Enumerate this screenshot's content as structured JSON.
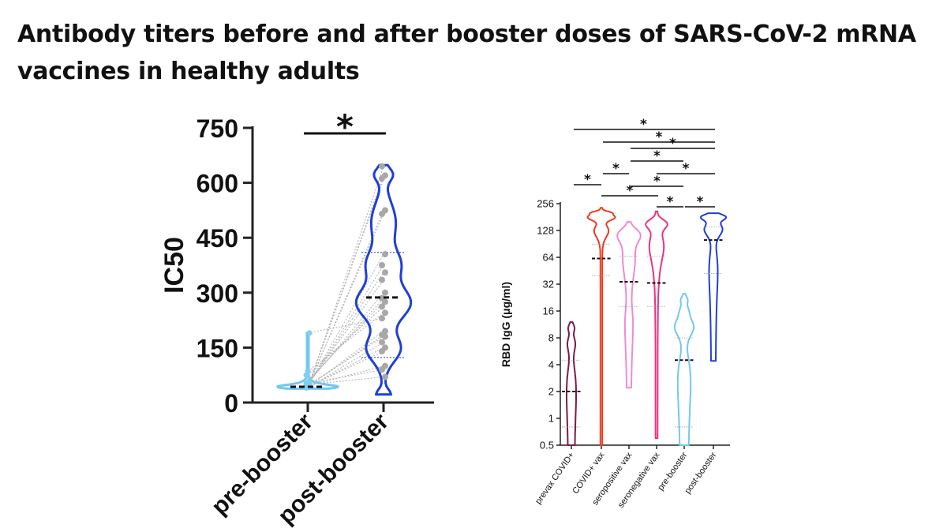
{
  "title": "Antibody titers before and after booster doses of SARS-CoV-2 mRNA vaccines in healthy adults",
  "colors": {
    "pre_booster": "#74c8ee",
    "post_booster": "#1f3fd6",
    "prevax_covid": "#7d1a4a",
    "covid_vax": "#ee3a1e",
    "seropositive_vax": "#f08ad2",
    "seronegative_vax": "#e8347f",
    "points": "#a8a8a8",
    "pairs": "#b0b0b0"
  },
  "chart_data": [
    {
      "type": "violin",
      "ylabel": "IC50",
      "ylim": [
        0,
        750
      ],
      "yticks": [
        "0",
        "150",
        "300",
        "450",
        "600",
        "750"
      ],
      "categories": [
        "pre-booster",
        "post-booster"
      ],
      "medians": [
        43,
        287
      ],
      "quartile_low": [
        null,
        123
      ],
      "quartile_high": [
        null,
        410
      ],
      "range": [
        [
          38,
          190
        ],
        [
          22,
          648
        ]
      ],
      "significance": [
        {
          "from": 0,
          "to": 1,
          "label": "*"
        }
      ],
      "paired_points": {
        "pre": [
          40,
          41,
          42,
          43,
          44,
          45,
          46,
          48,
          50,
          52,
          55,
          60,
          75,
          85,
          190,
          42,
          44,
          47,
          40,
          41,
          43,
          45,
          52,
          49
        ],
        "post": [
          645,
          620,
          612,
          525,
          515,
          405,
          375,
          355,
          335,
          300,
          285,
          275,
          262,
          245,
          230,
          195,
          185,
          180,
          165,
          150,
          140,
          100,
          90,
          70
        ]
      }
    },
    {
      "type": "violin",
      "ylabel": "RBD IgG (μg/ml)",
      "yscale": "log2",
      "ylim": [
        0.5,
        256
      ],
      "yticks": [
        "0.5",
        "1",
        "2",
        "4",
        "8",
        "16",
        "32",
        "64",
        "128",
        "256"
      ],
      "categories": [
        "prevax COVID+",
        "COVID+ vax",
        "seropositive vax",
        "seronegative vax",
        "pre-booster",
        "post-booster"
      ],
      "medians": [
        2,
        62,
        34,
        33,
        4.5,
        100
      ],
      "quartile_low": [
        0.8,
        40,
        18,
        18,
        0.8,
        42
      ],
      "quartile_high": [
        4.5,
        90,
        66,
        66,
        8,
        140
      ],
      "range": [
        [
          0.5,
          12
        ],
        [
          0.5,
          230
        ],
        [
          2.2,
          160
        ],
        [
          0.6,
          210
        ],
        [
          0.5,
          25
        ],
        [
          4.4,
          200
        ]
      ],
      "significance": [
        {
          "from": 0,
          "to": 5,
          "label": "*"
        },
        {
          "from": 1,
          "to": 5,
          "label": "*"
        },
        {
          "from": 2,
          "to": 5,
          "label": "*"
        },
        {
          "from": 2,
          "to": 4,
          "label": "*"
        },
        {
          "from": 1,
          "to": 2,
          "label": "*"
        },
        {
          "from": 3,
          "to": 5,
          "label": "*"
        },
        {
          "from": 0,
          "to": 1,
          "label": "*"
        },
        {
          "from": 2,
          "to": 4,
          "label": "*"
        },
        {
          "from": 1,
          "to": 3,
          "label": "*"
        },
        {
          "from": 3,
          "to": 4,
          "label": "*"
        },
        {
          "from": 4,
          "to": 5,
          "label": "*"
        }
      ]
    }
  ]
}
